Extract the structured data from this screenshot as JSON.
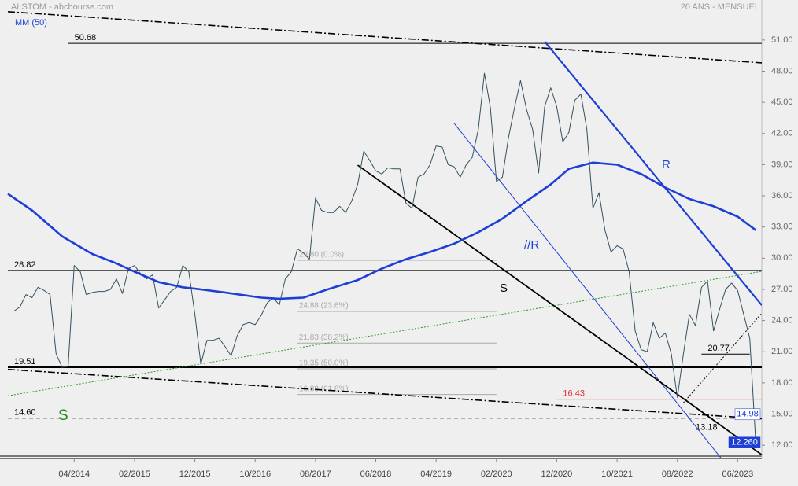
{
  "chart_data": {
    "type": "line",
    "title": "ALSTOM - abcbourse.com",
    "subtitle": "20 ANS - MENSUEL",
    "xlim": [
      "05/2013",
      "10/2023"
    ],
    "ylim": [
      10.8,
      54.85
    ],
    "xticks": [
      "04/2014",
      "02/2015",
      "12/2015",
      "10/2016",
      "08/2017",
      "06/2018",
      "04/2019",
      "02/2020",
      "12/2020",
      "10/2021",
      "08/2022",
      "06/2023"
    ],
    "yticks": [
      {
        "value": 51,
        "label": "51.00"
      },
      {
        "value": 48,
        "label": "48.00"
      },
      {
        "value": 45,
        "label": "45.00"
      },
      {
        "value": 42,
        "label": "42.00"
      },
      {
        "value": 39,
        "label": "39.00"
      },
      {
        "value": 36,
        "label": "36.00"
      },
      {
        "value": 33,
        "label": "33.00"
      },
      {
        "value": 30,
        "label": "30.00"
      },
      {
        "value": 27,
        "label": "27.00"
      },
      {
        "value": 24,
        "label": "24.00"
      },
      {
        "value": 21,
        "label": "21.00"
      },
      {
        "value": 18,
        "label": "18.00"
      },
      {
        "value": 15,
        "label": "15.00"
      },
      {
        "value": 12,
        "label": "12.00"
      }
    ],
    "series": [
      {
        "color": "#34515f",
        "x": [
          "06/2013",
          "07/2013",
          "08/2013",
          "09/2013",
          "10/2013",
          "11/2013",
          "12/2013",
          "01/2014",
          "02/2014",
          "03/2014",
          "04/2014",
          "05/2014",
          "06/2014",
          "07/2014",
          "08/2014",
          "09/2014",
          "10/2014",
          "11/2014",
          "12/2014",
          "01/2015",
          "02/2015",
          "03/2015",
          "04/2015",
          "05/2015",
          "06/2015",
          "07/2015",
          "08/2015",
          "09/2015",
          "10/2015",
          "11/2015",
          "12/2015",
          "01/2016",
          "02/2016",
          "03/2016",
          "04/2016",
          "05/2016",
          "06/2016",
          "07/2016",
          "08/2016",
          "09/2016",
          "10/2016",
          "11/2016",
          "12/2016",
          "01/2017",
          "02/2017",
          "03/2017",
          "04/2017",
          "05/2017",
          "06/2017",
          "07/2017",
          "08/2017",
          "09/2017",
          "10/2017",
          "11/2017",
          "12/2017",
          "01/2018",
          "02/2018",
          "03/2018",
          "04/2018",
          "05/2018",
          "06/2018",
          "07/2018",
          "08/2018",
          "09/2018",
          "10/2018",
          "11/2018",
          "12/2018",
          "01/2019",
          "02/2019",
          "03/2019",
          "04/2019",
          "05/2019",
          "06/2019",
          "07/2019",
          "08/2019",
          "09/2019",
          "10/2019",
          "11/2019",
          "12/2019",
          "01/2020",
          "02/2020",
          "03/2020",
          "04/2020",
          "05/2020",
          "06/2020",
          "07/2020",
          "08/2020",
          "09/2020",
          "10/2020",
          "11/2020",
          "12/2020",
          "01/2021",
          "02/2021",
          "03/2021",
          "04/2021",
          "05/2021",
          "06/2021",
          "07/2021",
          "08/2021",
          "09/2021",
          "10/2021",
          "11/2021",
          "12/2021",
          "01/2022",
          "02/2022",
          "03/2022",
          "04/2022",
          "05/2022",
          "06/2022",
          "07/2022",
          "08/2022",
          "09/2022",
          "10/2022",
          "11/2022",
          "12/2022",
          "01/2023",
          "02/2023",
          "03/2023",
          "04/2023",
          "05/2023",
          "06/2023",
          "07/2023",
          "08/2023",
          "09/2023"
        ],
        "values": [
          24.9,
          25.3,
          26.5,
          26.2,
          27.2,
          26.9,
          26.5,
          20.8,
          19.5,
          19.6,
          29.3,
          28.7,
          26.5,
          26.7,
          26.8,
          26.8,
          27.0,
          28.0,
          26.6,
          29.0,
          29.3,
          28.5,
          28.0,
          28.4,
          25.2,
          26.0,
          26.8,
          27.2,
          29.3,
          28.7,
          24.6,
          19.8,
          22.1,
          22.1,
          22.3,
          21.5,
          20.6,
          22.5,
          23.6,
          23.8,
          23.6,
          24.5,
          25.7,
          26.2,
          25.5,
          28.0,
          28.7,
          30.9,
          30.5,
          29.9,
          35.8,
          34.6,
          34.4,
          34.4,
          35.0,
          34.4,
          35.5,
          37.1,
          40.3,
          39.4,
          38.4,
          38.1,
          38.7,
          38.6,
          38.6,
          35.3,
          34.8,
          37.8,
          38.1,
          39.0,
          40.8,
          40.7,
          39.0,
          38.8,
          37.8,
          39.0,
          39.7,
          42.4,
          47.8,
          44.5,
          37.4,
          37.8,
          41.6,
          44.5,
          47.1,
          44.3,
          42.4,
          38.2,
          44.6,
          46.4,
          44.6,
          41.2,
          42.1,
          45.2,
          45.8,
          42.4,
          34.8,
          36.3,
          32.7,
          30.6,
          31.2,
          30.9,
          28.7,
          23.0,
          21.2,
          21.0,
          23.8,
          22.3,
          22.8,
          20.8,
          16.6,
          20.8,
          24.6,
          23.5,
          27.2,
          27.8,
          23.0,
          25.1,
          27.0,
          27.6,
          26.9,
          24.6,
          22.3,
          12.26
        ]
      },
      {
        "name": "MM (50)",
        "color": "#1d3fd6",
        "x": [
          "05/2013",
          "09/2013",
          "02/2014",
          "07/2014",
          "11/2014",
          "02/2015",
          "06/2015",
          "10/2015",
          "01/2016",
          "05/2016",
          "11/2016",
          "02/2017",
          "06/2017",
          "10/2017",
          "03/2018",
          "07/2018",
          "11/2018",
          "03/2019",
          "07/2019",
          "11/2019",
          "03/2020",
          "07/2020",
          "11/2020",
          "02/2021",
          "06/2021",
          "10/2021",
          "02/2022",
          "06/2022",
          "10/2022",
          "02/2023",
          "06/2023",
          "09/2023"
        ],
        "values": [
          36.2,
          34.6,
          32.1,
          30.4,
          29.5,
          28.7,
          27.7,
          27.2,
          27.0,
          26.7,
          26.2,
          26.1,
          26.2,
          27.0,
          27.9,
          29.0,
          29.9,
          30.6,
          31.4,
          32.5,
          33.8,
          35.5,
          37.1,
          38.6,
          39.2,
          39.0,
          38.1,
          36.8,
          35.7,
          35.0,
          34.0,
          32.7
        ]
      }
    ],
    "levels": [
      {
        "value": 50.68,
        "label": "50.68",
        "from": "03/2014",
        "to": "10/2023",
        "color": "#000000",
        "style": "solid"
      },
      {
        "value": 28.82,
        "label": "28.82",
        "from": "05/2013",
        "to": "10/2023",
        "color": "#000000",
        "style": "solid"
      },
      {
        "value": 19.51,
        "label": "19.51",
        "from": "05/2013",
        "to": "10/2023",
        "color": "#000000",
        "style": "solid"
      },
      {
        "value": 14.6,
        "label": "14.60",
        "from": "05/2013",
        "to": "10/2023",
        "color": "#000000",
        "style": "dashed"
      },
      {
        "value": 20.77,
        "label": "20.77",
        "from": "12/2022",
        "to": "08/2023",
        "color": "#000000",
        "style": "solid"
      },
      {
        "value": 16.43,
        "label": "16.43",
        "from": "12/2020",
        "to": "10/2023",
        "color": "#e0302a",
        "style": "solid"
      },
      {
        "value": 13.18,
        "label": "13.18",
        "from": "10/2022",
        "to": "06/2023",
        "color": "#000000",
        "style": "solid"
      }
    ],
    "fibonacci": {
      "from": "05/2017",
      "to": "02/2020",
      "color": "#aaaaaa",
      "levels": [
        {
          "value": 29.8,
          "label": "29.80 (0.0%)"
        },
        {
          "value": 24.88,
          "label": "24.88 (23.6%)"
        },
        {
          "value": 21.83,
          "label": "21.83 (38.2%)"
        },
        {
          "value": 19.35,
          "label": "19.35 (50.0%)"
        },
        {
          "value": 16.88,
          "label": "16.88 (61.8%)"
        }
      ]
    },
    "trendlines": [
      {
        "from": [
          "05/2013",
          53.73
        ],
        "to": [
          "10/2023",
          48.8
        ],
        "color": "#000000",
        "style": "dashdot"
      },
      {
        "from": [
          "05/2013",
          19.3
        ],
        "to": [
          "10/2023",
          14.55
        ],
        "color": "#000000",
        "style": "dashdot"
      },
      {
        "from": [
          "10/2020",
          50.85
        ],
        "to": [
          "10/2023",
          25.47
        ],
        "color": "#1d3fd6",
        "style": "solid"
      },
      {
        "from": [
          "07/2019",
          42.97
        ],
        "to": [
          "04/2023",
          10.2
        ],
        "color": "#1d3fd6",
        "style": "solid"
      },
      {
        "from": [
          "03/2018",
          38.95
        ],
        "to": [
          "10/2023",
          11.08
        ],
        "color": "#000000",
        "style": "solid"
      },
      {
        "from": [
          "05/2013",
          16.76
        ],
        "to": [
          "10/2023",
          28.73
        ],
        "color": "#2a9a2a",
        "style": "dotted"
      },
      {
        "from": [
          "09/2022",
          16.08
        ],
        "to": [
          "10/2023",
          24.7
        ],
        "color": "#000000",
        "style": "dotted"
      }
    ],
    "annotations": [
      {
        "text": "R",
        "color": "#1d3fd6"
      },
      {
        "text": "//R",
        "color": "#1d3fd6"
      },
      {
        "text": "S",
        "color": "#000000"
      },
      {
        "text": "S",
        "color": "#1e8a1e"
      }
    ],
    "tags": [
      {
        "value": 14.98,
        "label": "14.98",
        "color": "#1d3fd6",
        "filled": false
      },
      {
        "value": 12.26,
        "label": "12.260",
        "color": "#1d3fd6",
        "filled": true
      }
    ]
  }
}
